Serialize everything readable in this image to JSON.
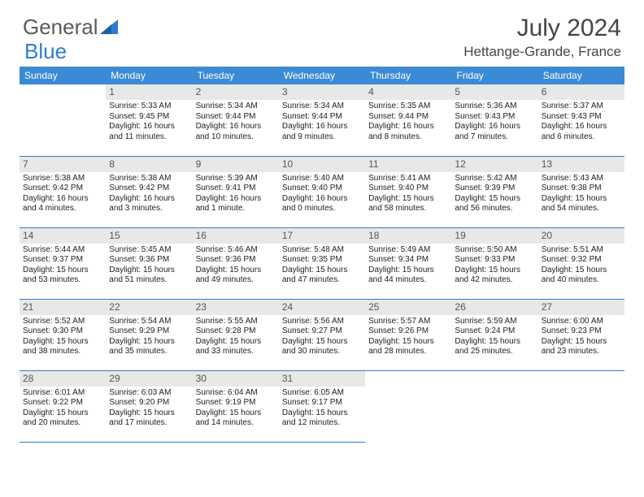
{
  "logo": {
    "text1": "General",
    "text2": "Blue"
  },
  "title": "July 2024",
  "location": "Hettange-Grande, France",
  "colors": {
    "header_bg": "#3b8bd4",
    "header_text": "#ffffff",
    "daynum_bg": "#e8e8e8",
    "border": "#2f7dd1",
    "logo_gray": "#5a5a5a",
    "logo_blue": "#2f7dd1"
  },
  "weekdays": [
    "Sunday",
    "Monday",
    "Tuesday",
    "Wednesday",
    "Thursday",
    "Friday",
    "Saturday"
  ],
  "weeks": [
    [
      null,
      {
        "n": "1",
        "sr": "Sunrise: 5:33 AM",
        "ss": "Sunset: 9:45 PM",
        "dl1": "Daylight: 16 hours",
        "dl2": "and 11 minutes."
      },
      {
        "n": "2",
        "sr": "Sunrise: 5:34 AM",
        "ss": "Sunset: 9:44 PM",
        "dl1": "Daylight: 16 hours",
        "dl2": "and 10 minutes."
      },
      {
        "n": "3",
        "sr": "Sunrise: 5:34 AM",
        "ss": "Sunset: 9:44 PM",
        "dl1": "Daylight: 16 hours",
        "dl2": "and 9 minutes."
      },
      {
        "n": "4",
        "sr": "Sunrise: 5:35 AM",
        "ss": "Sunset: 9:44 PM",
        "dl1": "Daylight: 16 hours",
        "dl2": "and 8 minutes."
      },
      {
        "n": "5",
        "sr": "Sunrise: 5:36 AM",
        "ss": "Sunset: 9:43 PM",
        "dl1": "Daylight: 16 hours",
        "dl2": "and 7 minutes."
      },
      {
        "n": "6",
        "sr": "Sunrise: 5:37 AM",
        "ss": "Sunset: 9:43 PM",
        "dl1": "Daylight: 16 hours",
        "dl2": "and 6 minutes."
      }
    ],
    [
      {
        "n": "7",
        "sr": "Sunrise: 5:38 AM",
        "ss": "Sunset: 9:42 PM",
        "dl1": "Daylight: 16 hours",
        "dl2": "and 4 minutes."
      },
      {
        "n": "8",
        "sr": "Sunrise: 5:38 AM",
        "ss": "Sunset: 9:42 PM",
        "dl1": "Daylight: 16 hours",
        "dl2": "and 3 minutes."
      },
      {
        "n": "9",
        "sr": "Sunrise: 5:39 AM",
        "ss": "Sunset: 9:41 PM",
        "dl1": "Daylight: 16 hours",
        "dl2": "and 1 minute."
      },
      {
        "n": "10",
        "sr": "Sunrise: 5:40 AM",
        "ss": "Sunset: 9:40 PM",
        "dl1": "Daylight: 16 hours",
        "dl2": "and 0 minutes."
      },
      {
        "n": "11",
        "sr": "Sunrise: 5:41 AM",
        "ss": "Sunset: 9:40 PM",
        "dl1": "Daylight: 15 hours",
        "dl2": "and 58 minutes."
      },
      {
        "n": "12",
        "sr": "Sunrise: 5:42 AM",
        "ss": "Sunset: 9:39 PM",
        "dl1": "Daylight: 15 hours",
        "dl2": "and 56 minutes."
      },
      {
        "n": "13",
        "sr": "Sunrise: 5:43 AM",
        "ss": "Sunset: 9:38 PM",
        "dl1": "Daylight: 15 hours",
        "dl2": "and 54 minutes."
      }
    ],
    [
      {
        "n": "14",
        "sr": "Sunrise: 5:44 AM",
        "ss": "Sunset: 9:37 PM",
        "dl1": "Daylight: 15 hours",
        "dl2": "and 53 minutes."
      },
      {
        "n": "15",
        "sr": "Sunrise: 5:45 AM",
        "ss": "Sunset: 9:36 PM",
        "dl1": "Daylight: 15 hours",
        "dl2": "and 51 minutes."
      },
      {
        "n": "16",
        "sr": "Sunrise: 5:46 AM",
        "ss": "Sunset: 9:36 PM",
        "dl1": "Daylight: 15 hours",
        "dl2": "and 49 minutes."
      },
      {
        "n": "17",
        "sr": "Sunrise: 5:48 AM",
        "ss": "Sunset: 9:35 PM",
        "dl1": "Daylight: 15 hours",
        "dl2": "and 47 minutes."
      },
      {
        "n": "18",
        "sr": "Sunrise: 5:49 AM",
        "ss": "Sunset: 9:34 PM",
        "dl1": "Daylight: 15 hours",
        "dl2": "and 44 minutes."
      },
      {
        "n": "19",
        "sr": "Sunrise: 5:50 AM",
        "ss": "Sunset: 9:33 PM",
        "dl1": "Daylight: 15 hours",
        "dl2": "and 42 minutes."
      },
      {
        "n": "20",
        "sr": "Sunrise: 5:51 AM",
        "ss": "Sunset: 9:32 PM",
        "dl1": "Daylight: 15 hours",
        "dl2": "and 40 minutes."
      }
    ],
    [
      {
        "n": "21",
        "sr": "Sunrise: 5:52 AM",
        "ss": "Sunset: 9:30 PM",
        "dl1": "Daylight: 15 hours",
        "dl2": "and 38 minutes."
      },
      {
        "n": "22",
        "sr": "Sunrise: 5:54 AM",
        "ss": "Sunset: 9:29 PM",
        "dl1": "Daylight: 15 hours",
        "dl2": "and 35 minutes."
      },
      {
        "n": "23",
        "sr": "Sunrise: 5:55 AM",
        "ss": "Sunset: 9:28 PM",
        "dl1": "Daylight: 15 hours",
        "dl2": "and 33 minutes."
      },
      {
        "n": "24",
        "sr": "Sunrise: 5:56 AM",
        "ss": "Sunset: 9:27 PM",
        "dl1": "Daylight: 15 hours",
        "dl2": "and 30 minutes."
      },
      {
        "n": "25",
        "sr": "Sunrise: 5:57 AM",
        "ss": "Sunset: 9:26 PM",
        "dl1": "Daylight: 15 hours",
        "dl2": "and 28 minutes."
      },
      {
        "n": "26",
        "sr": "Sunrise: 5:59 AM",
        "ss": "Sunset: 9:24 PM",
        "dl1": "Daylight: 15 hours",
        "dl2": "and 25 minutes."
      },
      {
        "n": "27",
        "sr": "Sunrise: 6:00 AM",
        "ss": "Sunset: 9:23 PM",
        "dl1": "Daylight: 15 hours",
        "dl2": "and 23 minutes."
      }
    ],
    [
      {
        "n": "28",
        "sr": "Sunrise: 6:01 AM",
        "ss": "Sunset: 9:22 PM",
        "dl1": "Daylight: 15 hours",
        "dl2": "and 20 minutes."
      },
      {
        "n": "29",
        "sr": "Sunrise: 6:03 AM",
        "ss": "Sunset: 9:20 PM",
        "dl1": "Daylight: 15 hours",
        "dl2": "and 17 minutes."
      },
      {
        "n": "30",
        "sr": "Sunrise: 6:04 AM",
        "ss": "Sunset: 9:19 PM",
        "dl1": "Daylight: 15 hours",
        "dl2": "and 14 minutes."
      },
      {
        "n": "31",
        "sr": "Sunrise: 6:05 AM",
        "ss": "Sunset: 9:17 PM",
        "dl1": "Daylight: 15 hours",
        "dl2": "and 12 minutes."
      },
      null,
      null,
      null
    ]
  ]
}
